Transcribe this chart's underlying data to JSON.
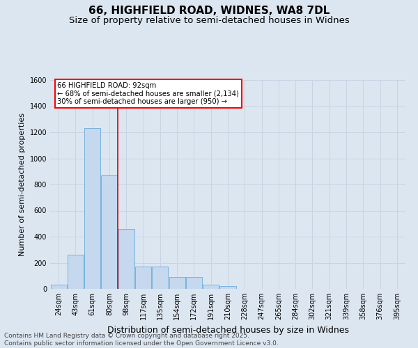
{
  "title_line1": "66, HIGHFIELD ROAD, WIDNES, WA8 7DL",
  "title_line2": "Size of property relative to semi-detached houses in Widnes",
  "xlabel": "Distribution of semi-detached houses by size in Widnes",
  "ylabel": "Number of semi-detached properties",
  "categories": [
    "24sqm",
    "43sqm",
    "61sqm",
    "80sqm",
    "98sqm",
    "117sqm",
    "135sqm",
    "154sqm",
    "172sqm",
    "191sqm",
    "210sqm",
    "228sqm",
    "247sqm",
    "265sqm",
    "284sqm",
    "302sqm",
    "321sqm",
    "339sqm",
    "358sqm",
    "376sqm",
    "395sqm"
  ],
  "values": [
    30,
    260,
    1230,
    870,
    460,
    170,
    170,
    90,
    90,
    30,
    20,
    0,
    0,
    0,
    0,
    0,
    0,
    0,
    0,
    0,
    0
  ],
  "bar_color": "#c5d8ee",
  "bar_edge_color": "#6aabdc",
  "vline_color": "red",
  "annotation_title": "66 HIGHFIELD ROAD: 92sqm",
  "annotation_line1": "← 68% of semi-detached houses are smaller (2,134)",
  "annotation_line2": "30% of semi-detached houses are larger (950) →",
  "annotation_box_color": "white",
  "annotation_box_edge": "red",
  "ylim": [
    0,
    1600
  ],
  "yticks": [
    0,
    200,
    400,
    600,
    800,
    1000,
    1200,
    1400,
    1600
  ],
  "grid_color": "#c8d4e3",
  "background_color": "#dce6f1",
  "plot_background": "#dce6f1",
  "footer_line1": "Contains HM Land Registry data © Crown copyright and database right 2025.",
  "footer_line2": "Contains public sector information licensed under the Open Government Licence v3.0.",
  "title_fontsize": 11,
  "subtitle_fontsize": 9.5,
  "xlabel_fontsize": 9,
  "ylabel_fontsize": 8,
  "tick_fontsize": 7,
  "footer_fontsize": 6.5
}
